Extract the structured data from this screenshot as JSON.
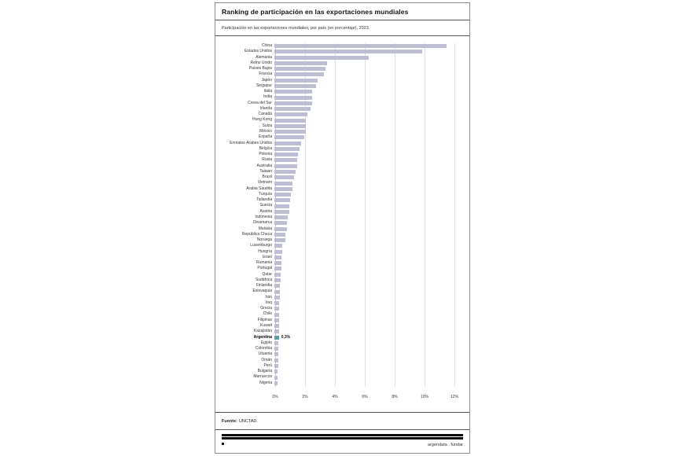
{
  "card": {
    "title": "Ranking de participación en las exportaciones mundiales",
    "subtitle": "Participación en las exportaciones mundiales, por país (en porcentaje), 2023.",
    "source_label": "Fuente:",
    "source_text": "UNCTAD.",
    "brand_text": "argendata . fundar"
  },
  "colors": {
    "bar_default": "#bdbdd3",
    "bar_highlight": "#5f9ea0",
    "gridline": "#dedee4",
    "brand_black": "#0a0a0a"
  },
  "chart_data": {
    "type": "bar",
    "orientation": "horizontal",
    "title": "Ranking de participación en las exportaciones mundiales",
    "subtitle": "Participación en las exportaciones mundiales, por país (en porcentaje), 2023.",
    "xlabel": "",
    "ylabel": "",
    "xlim": [
      0,
      12
    ],
    "x_ticks": [
      "0%",
      "2%",
      "4%",
      "6%",
      "8%",
      "10%",
      "12%"
    ],
    "x_tick_values": [
      0,
      2,
      4,
      6,
      8,
      10,
      12
    ],
    "grid": true,
    "unit": "percent",
    "highlight_category": "Argentina",
    "highlight_annotation": "0,3%",
    "categories": [
      "China",
      "Estados Unidos",
      "Alemania",
      "Reino Unido",
      "Países Bajos",
      "Francia",
      "Japón",
      "Singapur",
      "Italia",
      "India",
      "Corea del Sur",
      "Irlanda",
      "Canadá",
      "Hong Kong",
      "Suiza",
      "México",
      "España",
      "Emiratos Árabes Unidos",
      "Bélgica",
      "Polonia",
      "Rusia",
      "Australia",
      "Taiwan",
      "Brasil",
      "Vietnam",
      "Arabia Saudita",
      "Turquía",
      "Tailandia",
      "Suecia",
      "Austria",
      "Indonesia",
      "Dinamarca",
      "Malasia",
      "República Checa",
      "Noruega",
      "Luxemburgo",
      "Hungría",
      "Israel",
      "Rumania",
      "Portugal",
      "Qatar",
      "Sudáfrica",
      "Finlandia",
      "Eslovaquia",
      "Irán",
      "Iraq",
      "Grecia",
      "Chile",
      "Filipinas",
      "Kuwait",
      "Kazajistán",
      "Argentina",
      "Egipto",
      "Colombia",
      "Lituania",
      "Omán",
      "Perú",
      "Bulgaria",
      "Marruecos",
      "Nigeria"
    ],
    "values": [
      11.5,
      9.9,
      6.3,
      3.5,
      3.4,
      3.3,
      2.9,
      2.8,
      2.5,
      2.5,
      2.5,
      2.4,
      2.2,
      2.1,
      2.1,
      2.1,
      2.0,
      1.8,
      1.7,
      1.6,
      1.5,
      1.5,
      1.4,
      1.3,
      1.2,
      1.2,
      1.1,
      1.05,
      1.0,
      1.0,
      0.9,
      0.85,
      0.85,
      0.75,
      0.72,
      0.55,
      0.55,
      0.5,
      0.45,
      0.45,
      0.4,
      0.4,
      0.38,
      0.35,
      0.35,
      0.33,
      0.32,
      0.32,
      0.31,
      0.3,
      0.3,
      0.3,
      0.26,
      0.25,
      0.25,
      0.24,
      0.24,
      0.23,
      0.22,
      0.2
    ]
  }
}
